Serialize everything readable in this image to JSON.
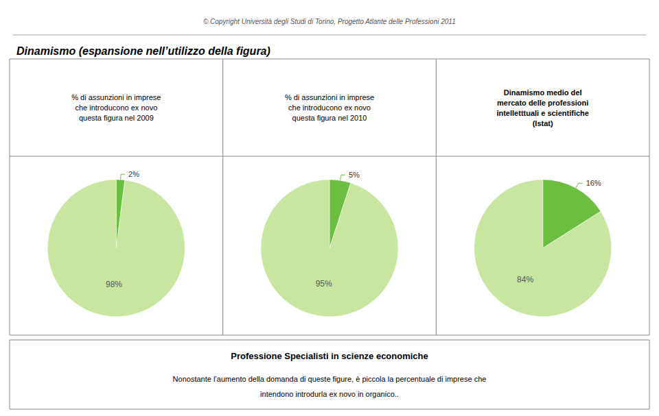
{
  "title": "Dinamismo (espansione nell’utilizzo della figura)",
  "subtitle": "© Copyright Università degli Studi di Torino, Progetto Atlante delle Professioni 2011",
  "annotations": [
    "Professione Specialisti in scienze economiche",
    "Nonostante l’aumento della domanda di queste figure, è piccola la percentuale di imprese che",
    "intendono introdurla ex novo in organico.."
  ],
  "chart_data": [
    {
      "type": "pie",
      "title": "% di assunzioni in imprese\nche introducono ex novo\nquesta figura nel 2009",
      "values": [
        2,
        98
      ],
      "value_labels": [
        "2%",
        "98%"
      ],
      "colors": [
        "#6abf40",
        "#c8e6a0"
      ],
      "data_labels": true
    },
    {
      "type": "pie",
      "title": "% di assunzioni in imprese\nche introducono ex novo\nquesta figura nel 2010",
      "values": [
        5,
        95
      ],
      "value_labels": [
        "5%",
        "95%"
      ],
      "colors": [
        "#6abf40",
        "#c8e6a0"
      ],
      "data_labels": true
    },
    {
      "type": "pie",
      "title": "Dinamismo medio del\nmercato delle professioni\nintelletttuali e scientifiche\n(Istat)",
      "values": [
        16,
        84
      ],
      "value_labels": [
        "16%",
        "84%"
      ],
      "colors": [
        "#6abf40",
        "#c8e6a0"
      ],
      "data_labels": true
    }
  ]
}
